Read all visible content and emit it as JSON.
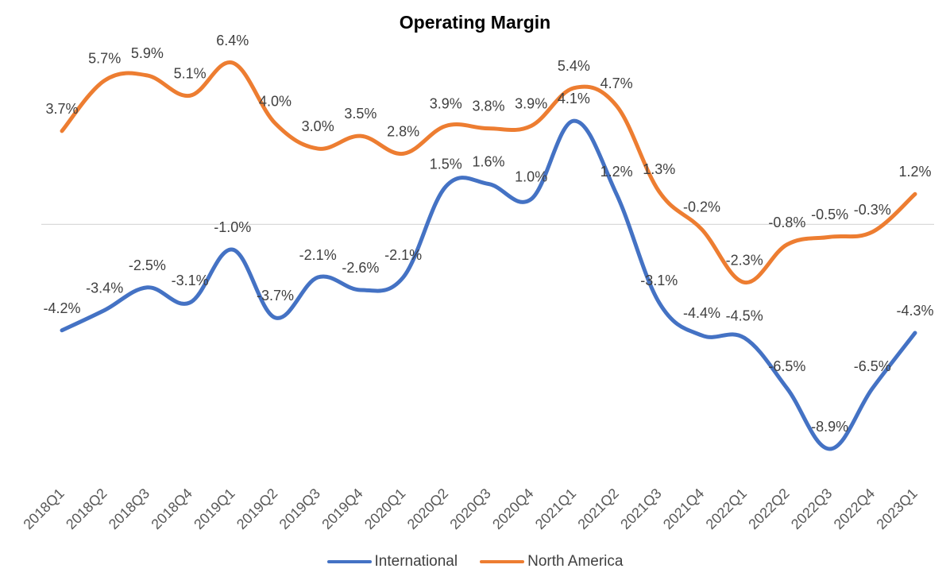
{
  "chart_data": {
    "type": "line",
    "title": "Operating Margin",
    "xlabel": "",
    "ylabel": "",
    "categories": [
      "2018Q1",
      "2018Q2",
      "2018Q3",
      "2018Q4",
      "2019Q1",
      "2019Q2",
      "2019Q3",
      "2019Q4",
      "2020Q1",
      "2020Q2",
      "2020Q3",
      "2020Q4",
      "2021Q1",
      "2021Q2",
      "2021Q3",
      "2021Q4",
      "2022Q1",
      "2022Q2",
      "2022Q3",
      "2022Q4",
      "2023Q1"
    ],
    "series": [
      {
        "name": "International",
        "color": "#4472C4",
        "values": [
          -4.2,
          -3.4,
          -2.5,
          -3.1,
          -1.0,
          -3.7,
          -2.1,
          -2.6,
          -2.1,
          1.5,
          1.6,
          1.0,
          4.1,
          1.2,
          -3.1,
          -4.4,
          -4.5,
          -6.5,
          -8.9,
          -6.5,
          -4.3
        ],
        "labels": [
          "-4.2%",
          "-3.4%",
          "-2.5%",
          "-3.1%",
          "-1.0%",
          "-3.7%",
          "-2.1%",
          "-2.6%",
          "-2.1%",
          "1.5%",
          "1.6%",
          "1.0%",
          "4.1%",
          "1.2%",
          "-3.1%",
          "-4.4%",
          "-4.5%",
          "-6.5%",
          "-8.9%",
          "-6.5%",
          "-4.3%"
        ]
      },
      {
        "name": "North America",
        "color": "#ED7D31",
        "values": [
          3.7,
          5.7,
          5.9,
          5.1,
          6.4,
          4.0,
          3.0,
          3.5,
          2.8,
          3.9,
          3.8,
          3.9,
          5.4,
          4.7,
          1.3,
          -0.2,
          -2.3,
          -0.8,
          -0.5,
          -0.3,
          1.2
        ],
        "labels": [
          "3.7%",
          "5.7%",
          "5.9%",
          "5.1%",
          "6.4%",
          "4.0%",
          "3.0%",
          "3.5%",
          "2.8%",
          "3.9%",
          "3.8%",
          "3.9%",
          "5.4%",
          "4.7%",
          "1.3%",
          "-0.2%",
          "-2.3%",
          "-0.8%",
          "-0.5%",
          "-0.3%",
          "1.2%"
        ]
      }
    ],
    "ylim": [
      -10,
      7
    ],
    "grid": false,
    "zero_line": true,
    "legend": "bottom"
  }
}
